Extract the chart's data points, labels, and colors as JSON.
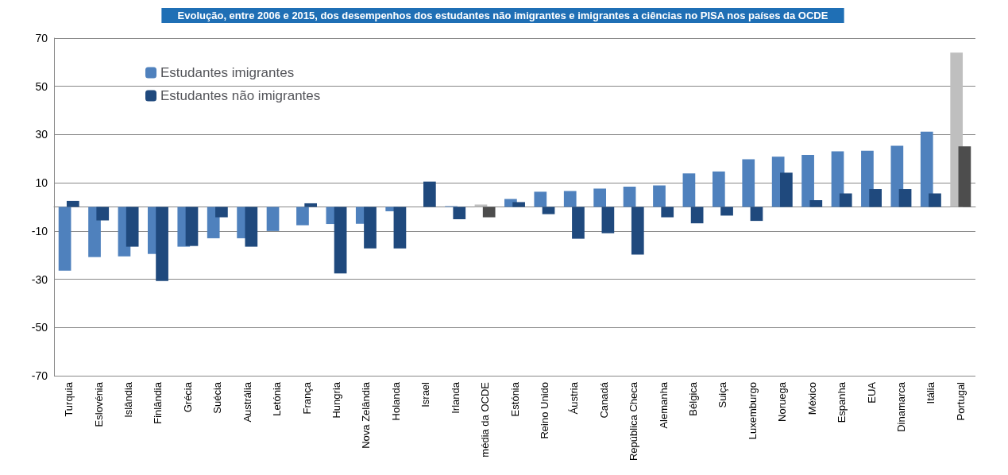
{
  "chart_data": {
    "type": "bar",
    "title": "Evolução, entre 2006 e 2015, dos desempenhos dos estudantes não imigrantes e imigrantes a ciências no PISA nos países da OCDE",
    "categories": [
      "Turquia",
      "Eslovénia",
      "Islândia",
      "Finlândia",
      "Grécia",
      "Suécia",
      "Austrália",
      "Letónia",
      "França",
      "Hungria",
      "Nova Zelândia",
      "Holanda",
      "Israel",
      "Irlanda",
      "média da OCDE",
      "Estónia",
      "Reino Unido",
      "Áustria",
      "Canadá",
      "República Checa",
      "Alemanha",
      "Bélgica",
      "Suiça",
      "Luxemburgo",
      "Noruega",
      "México",
      "Espanha",
      "EUA",
      "Dinamarca",
      "Itália",
      "Portugal"
    ],
    "series": [
      {
        "name": "Estudantes imigrantes",
        "color": "#4f81bd",
        "colors": [
          "#4f81bd",
          "#4f81bd",
          "#4f81bd",
          "#4f81bd",
          "#4f81bd",
          "#4f81bd",
          "#4f81bd",
          "#4f81bd",
          "#4f81bd",
          "#4f81bd",
          "#4f81bd",
          "#4f81bd",
          "#4f81bd",
          "#4f81bd",
          "#bfbfbf",
          "#4f81bd",
          "#4f81bd",
          "#4f81bd",
          "#4f81bd",
          "#4f81bd",
          "#4f81bd",
          "#4f81bd",
          "#4f81bd",
          "#4f81bd",
          "#4f81bd",
          "#4f81bd",
          "#4f81bd",
          "#4f81bd",
          "#4f81bd",
          "#4f81bd",
          "#bfbfbf"
        ],
        "values": [
          -26.4,
          -20.8,
          -20.5,
          -19.5,
          -16.5,
          -13,
          -13,
          -10,
          -7.6,
          -7.1,
          -7,
          -1.8,
          null,
          0.3,
          1,
          3.3,
          6.3,
          6.6,
          7.6,
          8.4,
          8.9,
          13.9,
          14.7,
          19.8,
          20.8,
          21.6,
          23.1,
          23.3,
          25.4,
          31.2,
          64
        ]
      },
      {
        "name": "Estudantes não imigrantes",
        "color": "#1f497d",
        "colors": [
          "#1f497d",
          "#1f497d",
          "#1f497d",
          "#1f497d",
          "#1f497d",
          "#1f497d",
          "#1f497d",
          "#1f497d",
          "#1f497d",
          "#1f497d",
          "#1f497d",
          "#1f497d",
          "#1f497d",
          "#1f497d",
          "#4d4d4d",
          "#1f497d",
          "#1f497d",
          "#1f497d",
          "#1f497d",
          "#1f497d",
          "#1f497d",
          "#1f497d",
          "#1f497d",
          "#1f497d",
          "#1f497d",
          "#1f497d",
          "#1f497d",
          "#1f497d",
          "#1f497d",
          "#1f497d",
          "#4d4d4d"
        ],
        "values": [
          2.5,
          -5.6,
          -16.5,
          -30.7,
          -16.2,
          -4.3,
          -16.5,
          null,
          1.5,
          -27.6,
          -17.2,
          -17.2,
          10.5,
          -5.1,
          -4.3,
          2,
          -3,
          -13.2,
          -10.9,
          -19.8,
          -4.3,
          -6.8,
          -3.6,
          -5.8,
          14.2,
          2.8,
          5.6,
          7.4,
          7.4,
          5.6,
          25.1
        ]
      }
    ],
    "ylim": [
      -70,
      70
    ],
    "yticks": [
      -70,
      -50,
      -30,
      -10,
      10,
      30,
      50,
      70
    ],
    "grid": "y",
    "legend": "top left"
  }
}
